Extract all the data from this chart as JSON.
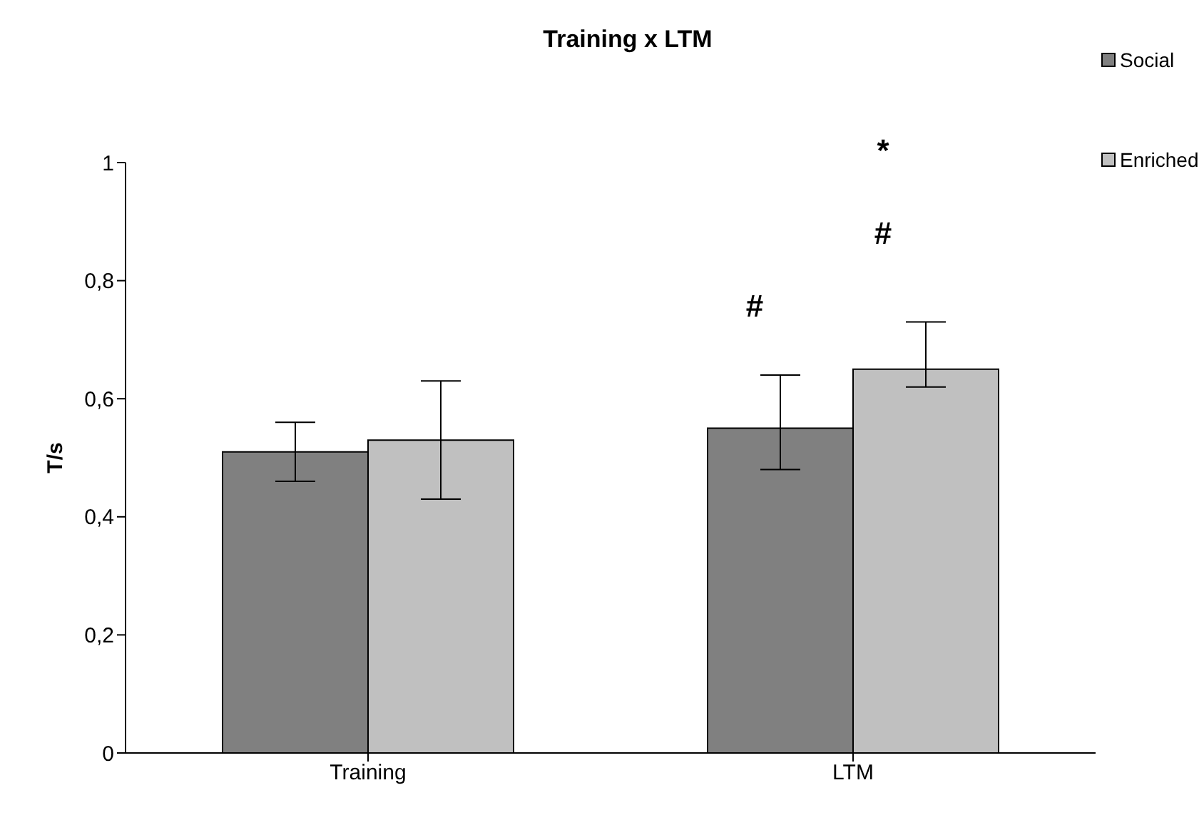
{
  "chart_data": {
    "type": "bar",
    "title": "Training x LTM",
    "ylabel": "T/s",
    "categories": [
      "Training",
      "LTM"
    ],
    "series": [
      {
        "name": "Social",
        "color": "#808080",
        "values": [
          0.51,
          0.55
        ],
        "errors": [
          [
            0.46,
            0.56
          ],
          [
            0.48,
            0.64
          ]
        ]
      },
      {
        "name": "Enriched",
        "color": "#c0c0c0",
        "values": [
          0.53,
          0.65
        ],
        "errors": [
          [
            0.43,
            0.63
          ],
          [
            0.62,
            0.73
          ]
        ]
      }
    ],
    "ylim": [
      0,
      1
    ],
    "yticks": [
      0,
      {
        "value": 0.2,
        "label": "0,2"
      },
      {
        "value": 0.4,
        "label": "0,4"
      },
      {
        "value": 0.6,
        "label": "0,6"
      },
      {
        "value": 0.8,
        "label": "0,8"
      },
      1
    ],
    "annotations": [
      "#",
      "#",
      "*"
    ],
    "legend": "top right",
    "grid": false
  }
}
